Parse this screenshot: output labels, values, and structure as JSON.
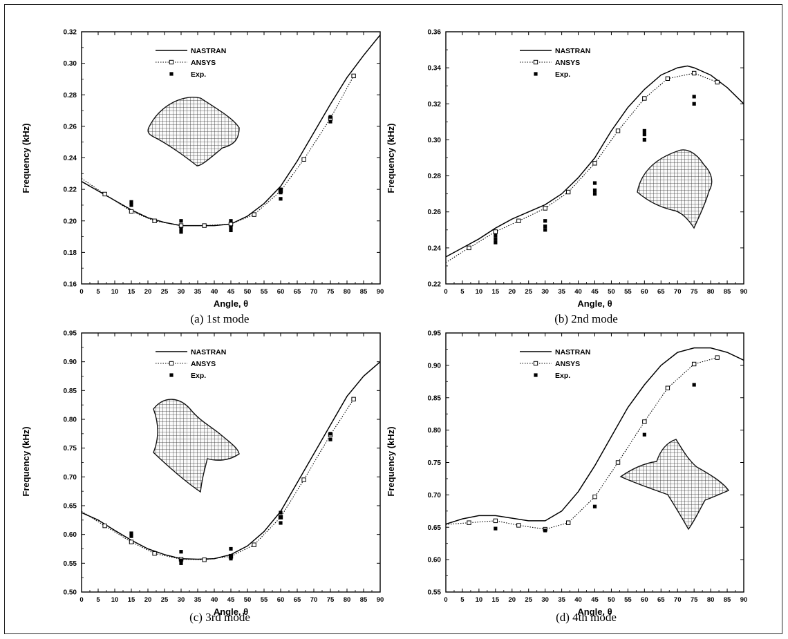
{
  "chart_data": [
    {
      "type": "line",
      "caption": "(a)  1st mode",
      "xlabel": "Angle, θ",
      "ylabel": "Frequency (kHz)",
      "xlim": [
        0,
        90
      ],
      "ylim": [
        0.16,
        0.32
      ],
      "xticks": [
        0,
        5,
        10,
        15,
        20,
        25,
        30,
        35,
        40,
        45,
        50,
        55,
        60,
        65,
        70,
        75,
        80,
        85,
        90
      ],
      "yticks": [
        0.16,
        0.18,
        0.2,
        0.22,
        0.24,
        0.26,
        0.28,
        0.3,
        0.32
      ],
      "ytick_labels": [
        "0.16",
        "0.18",
        "0.20",
        "0.22",
        "0.24",
        "0.26",
        "0.28",
        "0.30",
        "0.32"
      ],
      "legend_position": "top-center",
      "series": [
        {
          "name": "NASTRAN",
          "style": "solid",
          "x": [
            0,
            5,
            10,
            15,
            20,
            25,
            30,
            35,
            40,
            45,
            50,
            55,
            60,
            65,
            70,
            75,
            80,
            85,
            90
          ],
          "y": [
            0.225,
            0.219,
            0.213,
            0.207,
            0.202,
            0.199,
            0.197,
            0.197,
            0.197,
            0.198,
            0.203,
            0.211,
            0.222,
            0.238,
            0.256,
            0.274,
            0.291,
            0.305,
            0.318
          ]
        },
        {
          "name": "ANSYS",
          "style": "dotted-square",
          "x": [
            7,
            15,
            22,
            30,
            37,
            45,
            52,
            60,
            67,
            75,
            82
          ],
          "y": [
            0.217,
            0.206,
            0.2,
            0.197,
            0.197,
            0.198,
            0.204,
            0.219,
            0.239,
            0.265,
            0.292
          ]
        },
        {
          "name": "Exp.",
          "style": "filled-square",
          "x": [
            15,
            15,
            30,
            30,
            30,
            45,
            45,
            45,
            60,
            60,
            60,
            75,
            75
          ],
          "y": [
            0.212,
            0.21,
            0.2,
            0.195,
            0.193,
            0.2,
            0.196,
            0.194,
            0.22,
            0.218,
            0.214,
            0.266,
            0.263
          ]
        }
      ],
      "inset": "mode-shape-1"
    },
    {
      "type": "line",
      "caption": "(b)  2nd mode",
      "xlabel": "Angle, θ",
      "ylabel": "Frequency (kHz)",
      "xlim": [
        0,
        90
      ],
      "ylim": [
        0.22,
        0.36
      ],
      "xticks": [
        0,
        5,
        10,
        15,
        20,
        25,
        30,
        35,
        40,
        45,
        50,
        55,
        60,
        65,
        70,
        75,
        80,
        85,
        90
      ],
      "yticks": [
        0.22,
        0.24,
        0.26,
        0.28,
        0.3,
        0.32,
        0.34,
        0.36
      ],
      "ytick_labels": [
        "0.22",
        "0.24",
        "0.26",
        "0.28",
        "0.30",
        "0.32",
        "0.34",
        "0.36"
      ],
      "legend_position": "top-center",
      "series": [
        {
          "name": "NASTRAN",
          "style": "solid",
          "x": [
            0,
            5,
            10,
            15,
            20,
            25,
            30,
            35,
            40,
            45,
            50,
            55,
            60,
            65,
            70,
            73,
            75,
            80,
            85,
            90
          ],
          "y": [
            0.235,
            0.24,
            0.245,
            0.251,
            0.256,
            0.26,
            0.264,
            0.27,
            0.279,
            0.29,
            0.305,
            0.318,
            0.328,
            0.336,
            0.34,
            0.341,
            0.34,
            0.336,
            0.329,
            0.32
          ]
        },
        {
          "name": "ANSYS",
          "style": "dotted-square",
          "x": [
            7,
            15,
            22,
            30,
            37,
            45,
            52,
            60,
            67,
            75,
            82
          ],
          "y": [
            0.24,
            0.249,
            0.255,
            0.262,
            0.271,
            0.287,
            0.305,
            0.323,
            0.334,
            0.337,
            0.332
          ]
        },
        {
          "name": "Exp.",
          "style": "filled-square",
          "x": [
            15,
            15,
            15,
            30,
            30,
            30,
            45,
            45,
            45,
            60,
            60,
            60,
            75,
            75
          ],
          "y": [
            0.247,
            0.245,
            0.243,
            0.255,
            0.252,
            0.25,
            0.276,
            0.272,
            0.27,
            0.305,
            0.303,
            0.3,
            0.324,
            0.32
          ]
        }
      ],
      "inset": "mode-shape-2"
    },
    {
      "type": "line",
      "caption": "(c)  3rd mode",
      "xlabel": "Angle, θ",
      "ylabel": "Frequency (kHz)",
      "xlim": [
        0,
        90
      ],
      "ylim": [
        0.5,
        0.95
      ],
      "xticks": [
        0,
        5,
        10,
        15,
        20,
        25,
        30,
        35,
        40,
        45,
        50,
        55,
        60,
        65,
        70,
        75,
        80,
        85,
        90
      ],
      "yticks": [
        0.5,
        0.55,
        0.6,
        0.65,
        0.7,
        0.75,
        0.8,
        0.85,
        0.9,
        0.95
      ],
      "ytick_labels": [
        "0.50",
        "0.55",
        "0.60",
        "0.65",
        "0.70",
        "0.75",
        "0.80",
        "0.85",
        "0.90",
        "0.95"
      ],
      "legend_position": "top-center",
      "series": [
        {
          "name": "NASTRAN",
          "style": "solid",
          "x": [
            0,
            5,
            10,
            15,
            20,
            25,
            30,
            35,
            40,
            45,
            50,
            55,
            60,
            65,
            70,
            75,
            80,
            85,
            90
          ],
          "y": [
            0.638,
            0.625,
            0.607,
            0.59,
            0.575,
            0.565,
            0.558,
            0.557,
            0.558,
            0.565,
            0.58,
            0.605,
            0.64,
            0.69,
            0.74,
            0.79,
            0.84,
            0.875,
            0.9
          ]
        },
        {
          "name": "ANSYS",
          "style": "dotted-square",
          "x": [
            7,
            15,
            22,
            30,
            37,
            45,
            52,
            60,
            67,
            75,
            82
          ],
          "y": [
            0.615,
            0.587,
            0.567,
            0.557,
            0.556,
            0.562,
            0.582,
            0.63,
            0.695,
            0.773,
            0.835
          ]
        },
        {
          "name": "Exp.",
          "style": "filled-square",
          "x": [
            15,
            15,
            30,
            30,
            30,
            45,
            45,
            45,
            60,
            60,
            60,
            75,
            75
          ],
          "y": [
            0.602,
            0.597,
            0.57,
            0.555,
            0.55,
            0.575,
            0.563,
            0.558,
            0.638,
            0.63,
            0.62,
            0.775,
            0.765
          ]
        }
      ],
      "inset": "mode-shape-3"
    },
    {
      "type": "line",
      "caption": "(d)  4th mode",
      "xlabel": "Angle, θ",
      "ylabel": "Frequency (kHz)",
      "xlim": [
        0,
        90
      ],
      "ylim": [
        0.55,
        0.95
      ],
      "xticks": [
        0,
        5,
        10,
        15,
        20,
        25,
        30,
        35,
        40,
        45,
        50,
        55,
        60,
        65,
        70,
        75,
        80,
        85,
        90
      ],
      "yticks": [
        0.55,
        0.6,
        0.65,
        0.7,
        0.75,
        0.8,
        0.85,
        0.9,
        0.95
      ],
      "ytick_labels": [
        "0.55",
        "0.60",
        "0.65",
        "0.70",
        "0.75",
        "0.80",
        "0.85",
        "0.90",
        "0.95"
      ],
      "legend_position": "top-center",
      "series": [
        {
          "name": "NASTRAN",
          "style": "solid",
          "x": [
            0,
            5,
            10,
            15,
            20,
            25,
            30,
            35,
            40,
            45,
            50,
            55,
            60,
            65,
            70,
            75,
            80,
            85,
            90
          ],
          "y": [
            0.655,
            0.663,
            0.668,
            0.668,
            0.664,
            0.66,
            0.66,
            0.675,
            0.705,
            0.745,
            0.79,
            0.835,
            0.87,
            0.9,
            0.92,
            0.927,
            0.927,
            0.92,
            0.908
          ]
        },
        {
          "name": "ANSYS",
          "style": "dotted-square",
          "x": [
            7,
            15,
            22,
            30,
            37,
            45,
            52,
            60,
            67,
            75,
            82
          ],
          "y": [
            0.657,
            0.66,
            0.653,
            0.647,
            0.657,
            0.697,
            0.75,
            0.813,
            0.865,
            0.902,
            0.912
          ]
        },
        {
          "name": "Exp.",
          "style": "filled-square",
          "x": [
            15,
            30,
            45,
            60,
            75
          ],
          "y": [
            0.648,
            0.645,
            0.682,
            0.793,
            0.87
          ]
        }
      ],
      "inset": "mode-shape-4"
    }
  ]
}
